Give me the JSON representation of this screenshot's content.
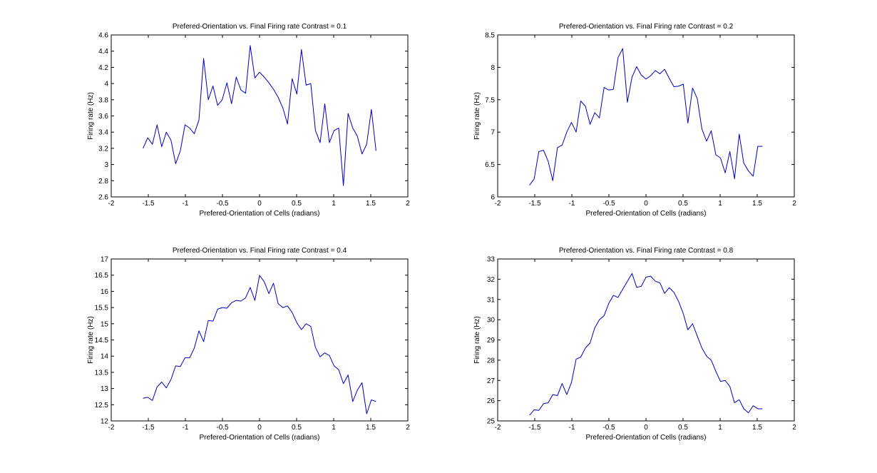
{
  "chart_data": [
    {
      "type": "line",
      "title": "Prefered-Orientation vs. Final Firing rate Contrast = 0.1",
      "xlabel": "Prefered-Orientation of Cells (radians)",
      "ylabel": "Firing rate (Hz)",
      "xlim": [
        -2,
        2
      ],
      "ylim": [
        2.6,
        4.6
      ],
      "xticks": [
        -2,
        -1.5,
        -1,
        -0.5,
        0,
        0.5,
        1,
        1.5,
        2
      ],
      "yticks": [
        2.6,
        2.8,
        3,
        3.2,
        3.4,
        3.6,
        3.8,
        4,
        4.2,
        4.4,
        4.6
      ],
      "grid": false,
      "line_color": "#0000bb",
      "series": [
        {
          "x": [
            -1.571,
            -1.508,
            -1.445,
            -1.382,
            -1.319,
            -1.257,
            -1.194,
            -1.131,
            -1.068,
            -1.005,
            -0.942,
            -0.88,
            -0.817,
            -0.754,
            -0.691,
            -0.628,
            -0.565,
            -0.503,
            -0.44,
            -0.377,
            -0.314,
            -0.251,
            -0.188,
            -0.126,
            -0.063,
            0.0,
            0.063,
            0.126,
            0.188,
            0.251,
            0.314,
            0.377,
            0.44,
            0.503,
            0.565,
            0.628,
            0.691,
            0.754,
            0.817,
            0.88,
            0.942,
            1.005,
            1.068,
            1.131,
            1.194,
            1.257,
            1.319,
            1.382,
            1.445,
            1.508,
            1.571
          ],
          "y": [
            3.2,
            3.33,
            3.25,
            3.49,
            3.22,
            3.4,
            3.3,
            3.01,
            3.17,
            3.49,
            3.45,
            3.38,
            3.55,
            4.31,
            3.8,
            3.97,
            3.73,
            3.8,
            4.01,
            3.75,
            4.08,
            3.92,
            3.88,
            4.47,
            4.07,
            4.14,
            4.08,
            4.01,
            3.93,
            3.83,
            3.7,
            3.5,
            4.06,
            3.87,
            4.42,
            3.98,
            4.0,
            3.42,
            3.27,
            3.75,
            3.27,
            3.42,
            3.45,
            2.74,
            3.63,
            3.45,
            3.35,
            3.13,
            3.25,
            3.68,
            3.17
          ]
        }
      ]
    },
    {
      "type": "line",
      "title": "Prefered-Orientation vs. Final Firing rate Contrast = 0.2",
      "xlabel": "Prefered-Orientation of Cells (radians)",
      "ylabel": "Firing rate (Hz)",
      "xlim": [
        -2,
        2
      ],
      "ylim": [
        6,
        8.5
      ],
      "xticks": [
        -2,
        -1.5,
        -1,
        -0.5,
        0,
        0.5,
        1,
        1.5,
        2
      ],
      "yticks": [
        6,
        6.5,
        7,
        7.5,
        8,
        8.5
      ],
      "grid": false,
      "line_color": "#0000bb",
      "series": [
        {
          "x": [
            -1.571,
            -1.508,
            -1.445,
            -1.382,
            -1.319,
            -1.257,
            -1.194,
            -1.131,
            -1.068,
            -1.005,
            -0.942,
            -0.88,
            -0.817,
            -0.754,
            -0.691,
            -0.628,
            -0.565,
            -0.503,
            -0.44,
            -0.377,
            -0.314,
            -0.251,
            -0.188,
            -0.126,
            -0.063,
            0.0,
            0.063,
            0.126,
            0.188,
            0.251,
            0.314,
            0.377,
            0.44,
            0.503,
            0.565,
            0.628,
            0.691,
            0.754,
            0.817,
            0.88,
            0.942,
            1.005,
            1.068,
            1.131,
            1.194,
            1.257,
            1.319,
            1.382,
            1.445,
            1.508,
            1.571
          ],
          "y": [
            6.18,
            6.28,
            6.7,
            6.72,
            6.55,
            6.25,
            6.76,
            6.8,
            7.0,
            7.15,
            7.0,
            7.48,
            7.4,
            7.12,
            7.3,
            7.22,
            7.69,
            7.65,
            7.66,
            8.15,
            8.29,
            7.46,
            7.85,
            8.01,
            7.88,
            7.82,
            7.87,
            7.95,
            7.9,
            7.97,
            7.83,
            7.7,
            7.71,
            7.74,
            7.14,
            7.68,
            7.52,
            7.05,
            6.86,
            7.02,
            6.65,
            6.6,
            6.37,
            6.7,
            6.28,
            6.97,
            6.52,
            6.4,
            6.32,
            6.78,
            6.78
          ]
        }
      ]
    },
    {
      "type": "line",
      "title": "Prefered-Orientation vs. Final Firing rate Contrast = 0.4",
      "xlabel": "Prefered-Orientation of Cells (radians)",
      "ylabel": "Firing rate (Hz)",
      "xlim": [
        -2,
        2
      ],
      "ylim": [
        12,
        17
      ],
      "xticks": [
        -2,
        -1.5,
        -1,
        -0.5,
        0,
        0.5,
        1,
        1.5,
        2
      ],
      "yticks": [
        12,
        12.5,
        13,
        13.5,
        14,
        14.5,
        15,
        15.5,
        16,
        16.5,
        17
      ],
      "grid": false,
      "line_color": "#0000bb",
      "series": [
        {
          "x": [
            -1.571,
            -1.508,
            -1.445,
            -1.382,
            -1.319,
            -1.257,
            -1.194,
            -1.131,
            -1.068,
            -1.005,
            -0.942,
            -0.88,
            -0.817,
            -0.754,
            -0.691,
            -0.628,
            -0.565,
            -0.503,
            -0.44,
            -0.377,
            -0.314,
            -0.251,
            -0.188,
            -0.126,
            -0.063,
            0.0,
            0.063,
            0.126,
            0.188,
            0.251,
            0.314,
            0.377,
            0.44,
            0.503,
            0.565,
            0.628,
            0.691,
            0.754,
            0.817,
            0.88,
            0.942,
            1.005,
            1.068,
            1.131,
            1.194,
            1.257,
            1.319,
            1.382,
            1.445,
            1.508,
            1.571
          ],
          "y": [
            12.7,
            12.73,
            12.63,
            13.05,
            13.2,
            13.02,
            13.28,
            13.7,
            13.68,
            13.95,
            13.95,
            14.25,
            14.78,
            14.45,
            15.1,
            15.08,
            15.45,
            15.5,
            15.48,
            15.65,
            15.72,
            15.7,
            15.8,
            16.12,
            15.72,
            16.49,
            16.3,
            15.93,
            16.25,
            15.62,
            15.5,
            15.55,
            15.35,
            15.03,
            14.82,
            15.0,
            14.92,
            14.27,
            13.98,
            14.1,
            14.02,
            13.7,
            13.58,
            13.15,
            13.42,
            12.6,
            12.95,
            13.18,
            12.22,
            12.65,
            12.6
          ]
        }
      ]
    },
    {
      "type": "line",
      "title": "Prefered-Orientation vs. Final Firing rate Contrast = 0.8",
      "xlabel": "Prefered-Orientation of Cells (radians)",
      "ylabel": "Firing rate (Hz)",
      "xlim": [
        -2,
        2
      ],
      "ylim": [
        25,
        33
      ],
      "xticks": [
        -2,
        -1.5,
        -1,
        -0.5,
        0,
        0.5,
        1,
        1.5,
        2
      ],
      "yticks": [
        25,
        26,
        27,
        28,
        29,
        30,
        31,
        32,
        33
      ],
      "grid": false,
      "line_color": "#0000bb",
      "series": [
        {
          "x": [
            -1.571,
            -1.508,
            -1.445,
            -1.382,
            -1.319,
            -1.257,
            -1.194,
            -1.131,
            -1.068,
            -1.005,
            -0.942,
            -0.88,
            -0.817,
            -0.754,
            -0.691,
            -0.628,
            -0.565,
            -0.503,
            -0.44,
            -0.377,
            -0.314,
            -0.251,
            -0.188,
            -0.126,
            -0.063,
            0.0,
            0.063,
            0.126,
            0.188,
            0.251,
            0.314,
            0.377,
            0.44,
            0.503,
            0.565,
            0.628,
            0.691,
            0.754,
            0.817,
            0.88,
            0.942,
            1.005,
            1.068,
            1.131,
            1.194,
            1.257,
            1.319,
            1.382,
            1.445,
            1.508,
            1.571
          ],
          "y": [
            25.28,
            25.55,
            25.52,
            25.85,
            25.9,
            26.3,
            26.25,
            26.85,
            26.3,
            26.9,
            28.05,
            28.15,
            28.6,
            28.85,
            29.6,
            30.0,
            30.2,
            30.8,
            31.2,
            31.1,
            31.5,
            31.9,
            32.28,
            31.6,
            31.65,
            32.1,
            32.15,
            31.9,
            31.82,
            31.3,
            31.58,
            31.35,
            30.9,
            30.3,
            29.5,
            29.8,
            29.2,
            28.6,
            28.2,
            28.0,
            27.45,
            26.95,
            27.0,
            26.7,
            25.9,
            26.05,
            25.6,
            25.4,
            25.75,
            25.6,
            25.6
          ]
        }
      ]
    }
  ]
}
